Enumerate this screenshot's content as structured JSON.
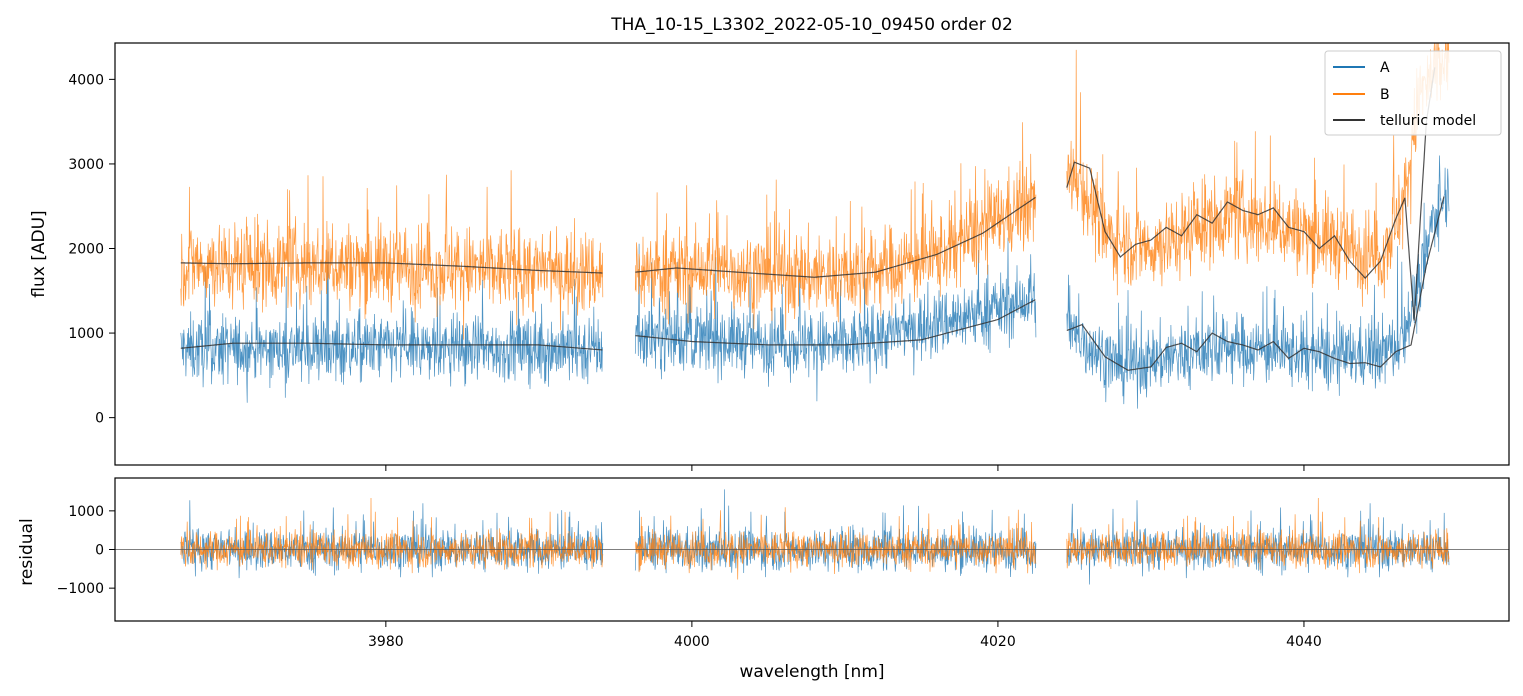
{
  "colors": {
    "A": "#1f77b4",
    "B": "#ff7f0e",
    "telluric": "#333333",
    "zero_line": "#555555"
  },
  "chart_data": [
    {
      "type": "line",
      "panel": "top",
      "title": "THA_10-15_L3302_2022-05-10_09450  order 02",
      "xlabel": "",
      "ylabel": "flux [ADU]",
      "xlim": [
        3962.3,
        4053.4
      ],
      "ylim": [
        -560,
        4430
      ],
      "yticks": [
        0,
        1000,
        2000,
        3000,
        4000
      ],
      "ytick_labels": [
        "0",
        "1000",
        "2000",
        "3000",
        "4000"
      ],
      "legend": {
        "position": "top-right",
        "entries": [
          "A",
          "B",
          "telluric model"
        ]
      },
      "segments": [
        {
          "x_start": 3966.6,
          "x_end": 3994.2
        },
        {
          "x_start": 3996.3,
          "x_end": 4022.5
        },
        {
          "x_start": 4024.5,
          "x_end": 4049.5
        }
      ],
      "series": [
        {
          "name": "A",
          "kind": "noisy",
          "mean_x": [
            3966.6,
            3980,
            3994.2,
            3996.3,
            4010,
            4022.5,
            4024.5,
            4028,
            4035,
            4042,
            4046,
            4047.5,
            4048.5,
            4049.5
          ],
          "mean_y": [
            800,
            820,
            800,
            970,
            850,
            1400,
            1030,
            600,
            850,
            700,
            820,
            1500,
            2400,
            2700
          ],
          "spread": 520,
          "spike_max": 3100
        },
        {
          "name": "B",
          "kind": "noisy",
          "mean_x": [
            3966.6,
            3980,
            3994.2,
            3996.3,
            4000,
            4010,
            4016,
            4022.5,
            4024.5,
            4025,
            4027,
            4030,
            4035,
            4040,
            4045,
            4046.5,
            4047.5,
            4049.5
          ],
          "mean_y": [
            1820,
            1800,
            1700,
            1720,
            1740,
            1670,
            1900,
            2600,
            2700,
            2950,
            2150,
            2000,
            2400,
            2200,
            1900,
            2500,
            3800,
            4300
          ],
          "spread": 650,
          "spike_max": 4430
        },
        {
          "name": "telluric model (A)",
          "kind": "smooth",
          "x": [
            3966.6,
            3970,
            3975,
            3980,
            3985,
            3990,
            3994.2,
            3996.3,
            4000,
            4005,
            4010,
            4015,
            4020,
            4022.5,
            4024.5,
            4025.5,
            4027,
            4028.5,
            4030,
            4031,
            4032,
            4033,
            4034,
            4035,
            4036,
            4037,
            4038,
            4039,
            4040,
            4041,
            4042,
            4043,
            4044,
            4045,
            4046,
            4047,
            4048,
            4049.2
          ],
          "y": [
            820,
            880,
            880,
            860,
            860,
            860,
            800,
            970,
            900,
            860,
            860,
            920,
            1160,
            1400,
            1030,
            1100,
            720,
            560,
            600,
            830,
            880,
            780,
            1000,
            900,
            860,
            800,
            900,
            700,
            820,
            780,
            700,
            640,
            650,
            600,
            780,
            860,
            1800,
            2650
          ]
        },
        {
          "name": "telluric model (B)",
          "kind": "smooth",
          "x": [
            3966.6,
            3970,
            3975,
            3980,
            3985,
            3990,
            3994.2,
            3996.3,
            3999,
            4003,
            4008,
            4012,
            4016,
            4019,
            4022.5,
            4024.5,
            4025,
            4026,
            4027,
            4028,
            4029,
            4030,
            4031,
            4032,
            4033,
            4034,
            4035,
            4036,
            4037,
            4038,
            4039,
            4040,
            4041,
            4042,
            4043,
            4044,
            4045,
            4046,
            4046.6,
            4047.2,
            4048,
            4048.6
          ],
          "y": [
            1830,
            1820,
            1830,
            1830,
            1790,
            1740,
            1710,
            1720,
            1770,
            1720,
            1660,
            1720,
            1930,
            2180,
            2610,
            2720,
            3020,
            2950,
            2200,
            1900,
            2050,
            2100,
            2250,
            2150,
            2400,
            2300,
            2550,
            2450,
            2400,
            2480,
            2250,
            2200,
            2000,
            2150,
            1850,
            1650,
            1850,
            2350,
            2600,
            1150,
            3500,
            4200
          ]
        }
      ]
    },
    {
      "type": "line",
      "panel": "bottom",
      "title": "",
      "xlabel": "wavelength [nm]",
      "ylabel": "residual",
      "xlim": [
        3962.3,
        4053.4
      ],
      "ylim": [
        -1850,
        1850
      ],
      "xticks": [
        3980,
        4000,
        4020,
        4040
      ],
      "xtick_labels": [
        "3980",
        "4000",
        "4020",
        "4040"
      ],
      "yticks": [
        -1000,
        0,
        1000
      ],
      "ytick_labels": [
        "−1000",
        "0",
        "1000"
      ],
      "zero_line": 0,
      "series": [
        {
          "name": "A",
          "kind": "noisy",
          "mean": 0,
          "spread": 700,
          "spike_max": 1850
        },
        {
          "name": "B",
          "kind": "noisy",
          "mean": 0,
          "spread": 600,
          "spike_max": 1850
        }
      ]
    }
  ]
}
